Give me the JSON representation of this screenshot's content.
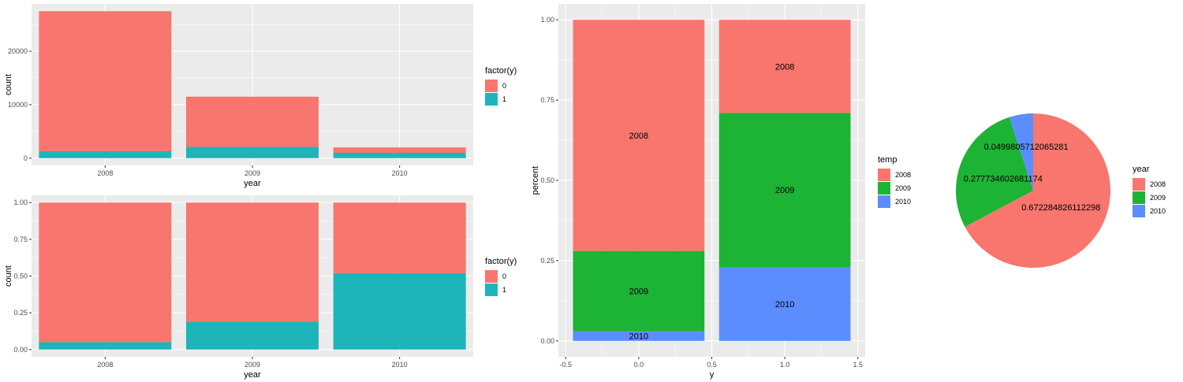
{
  "colors": {
    "panel_bg": "#EBEBEB",
    "grid": "#FFFFFF",
    "tick_label": "#4D4D4D",
    "c2008": "#F8766D",
    "c2009": "#1DB335",
    "c2010": "#5C8DFF",
    "c0": "#F8766D",
    "c1": "#1DB5B9"
  },
  "chart_data": [
    {
      "id": "top_left",
      "type": "bar",
      "stacked": true,
      "xlabel": "year",
      "ylabel": "count",
      "categories": [
        "2008",
        "2009",
        "2010"
      ],
      "ylim": [
        0,
        27500
      ],
      "yticks": [
        0,
        10000,
        20000
      ],
      "series": [
        {
          "name": "0",
          "color_key": "c0",
          "values": [
            26200,
            9400,
            1000
          ]
        },
        {
          "name": "1",
          "color_key": "c1",
          "values": [
            1300,
            2100,
            1000
          ]
        }
      ],
      "legend": {
        "title": "factor(y)",
        "entries": [
          "0",
          "1"
        ],
        "position": "right"
      },
      "grid": true
    },
    {
      "id": "bottom_left",
      "type": "bar",
      "stacked": true,
      "xlabel": "year",
      "ylabel": "count",
      "categories": [
        "2008",
        "2009",
        "2010"
      ],
      "ylim": [
        0,
        1
      ],
      "yticks": [
        "0.00",
        "0.25",
        "0.50",
        "0.75",
        "1.00"
      ],
      "series": [
        {
          "name": "0",
          "color_key": "c0",
          "values": [
            0.95,
            0.81,
            0.48
          ]
        },
        {
          "name": "1",
          "color_key": "c1",
          "values": [
            0.05,
            0.19,
            0.52
          ]
        }
      ],
      "legend": {
        "title": "factor(y)",
        "entries": [
          "0",
          "1"
        ],
        "position": "right"
      },
      "grid": true
    },
    {
      "id": "middle",
      "type": "bar",
      "stacked": true,
      "xlabel": "y",
      "ylabel": "percent",
      "x": [
        0,
        1
      ],
      "xlim": [
        -0.55,
        1.55
      ],
      "xticks": [
        "-0.5",
        "0.0",
        "0.5",
        "1.0",
        "1.5"
      ],
      "ylim": [
        0,
        1
      ],
      "yticks": [
        "0.00",
        "0.25",
        "0.50",
        "0.75",
        "1.00"
      ],
      "series": [
        {
          "name": "2008",
          "color_key": "c2008",
          "values": [
            0.72,
            0.29
          ]
        },
        {
          "name": "2009",
          "color_key": "c2009",
          "values": [
            0.25,
            0.48
          ]
        },
        {
          "name": "2010",
          "color_key": "c2010",
          "values": [
            0.03,
            0.23
          ]
        }
      ],
      "bar_labels": [
        [
          "2008",
          "2009",
          "2010"
        ],
        [
          "2008",
          "2009",
          "2010"
        ]
      ],
      "legend": {
        "title": "temp",
        "entries": [
          "2008",
          "2009",
          "2010"
        ],
        "position": "right"
      },
      "grid": true
    },
    {
      "id": "pie",
      "type": "pie",
      "slices": [
        {
          "label": "2008",
          "value": 0.672284826112298,
          "text": "0.672284826112298",
          "color_key": "c2008"
        },
        {
          "label": "2009",
          "value": 0.277734602681174,
          "text": "0.277734602681174",
          "color_key": "c2009"
        },
        {
          "label": "2010",
          "value": 0.0499805712065281,
          "text": "0.0499805712065281",
          "color_key": "c2010"
        }
      ],
      "legend": {
        "title": "year",
        "entries": [
          "2008",
          "2009",
          "2010"
        ],
        "position": "right"
      }
    }
  ]
}
